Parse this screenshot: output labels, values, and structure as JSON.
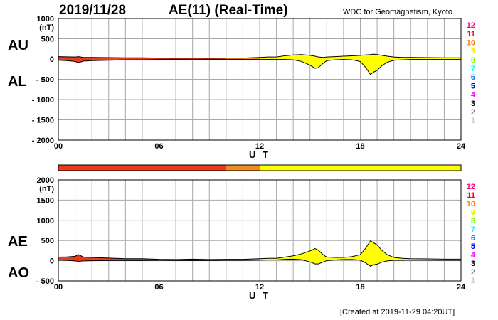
{
  "header": {
    "date": "2019/11/28",
    "title": "AE(11) (Real-Time)",
    "source": "WDC for Geomagnetism, Kyoto"
  },
  "footer": {
    "created": "[Created at 2019-11-29 04:20UT]"
  },
  "colors": {
    "fill_yellow": "#ffff00",
    "fill_red": "#ee3a1c",
    "fill_orange": "#f08c1e",
    "grid": "#a8a8a8"
  },
  "station_count_legend": {
    "labels": [
      "12",
      "11",
      "10",
      "9",
      "8",
      "7",
      "6",
      "5",
      "4",
      "3",
      "2",
      "1"
    ],
    "colors": [
      "#ff0080",
      "#ff0000",
      "#ff8000",
      "#e8e800",
      "#80ff00",
      "#00ffff",
      "#0080ff",
      "#0000ff",
      "#ff00ff",
      "#000000",
      "#808080",
      "#c8c8c8"
    ]
  },
  "station_bar": {
    "segments": [
      {
        "from": 0,
        "to": 10,
        "color": "#ee3a1c",
        "count": "11"
      },
      {
        "from": 10,
        "to": 12,
        "color": "#f08c1e",
        "count": "10"
      },
      {
        "from": 12,
        "to": 24,
        "color": "#ffff00",
        "count": "9"
      }
    ]
  },
  "chart_data": [
    {
      "type": "area",
      "panel": "AU/AL",
      "labels": {
        "upper": "AU",
        "lower": "AL"
      },
      "unit": "(nT)",
      "xlabel": "U T",
      "ylim": [
        -2000,
        1000
      ],
      "yticks": [
        1000,
        500,
        0,
        -500,
        -1000,
        -1500,
        -2000
      ],
      "ytick_labels": [
        "1000",
        "500",
        "0",
        "- 500",
        "- 1000",
        "- 1500",
        "- 2000"
      ],
      "xlim": [
        0,
        24
      ],
      "xticks": [
        0,
        6,
        12,
        18,
        24
      ],
      "xtick_labels": [
        "00",
        "06",
        "12",
        "18",
        "24"
      ],
      "grid": true,
      "x": [
        0,
        0.5,
        1,
        1.2,
        1.5,
        2,
        3,
        4,
        5,
        6,
        7,
        8,
        9,
        10,
        11,
        12,
        12.5,
        13,
        13.5,
        14,
        14.5,
        15,
        15.3,
        15.5,
        15.8,
        16,
        16.5,
        17,
        17.5,
        18,
        18.3,
        18.6,
        18.8,
        19,
        19.3,
        19.6,
        20,
        20.5,
        21,
        22,
        23,
        24
      ],
      "series": [
        {
          "name": "AU",
          "values": [
            60,
            55,
            50,
            60,
            40,
            40,
            35,
            30,
            30,
            25,
            20,
            25,
            20,
            25,
            25,
            40,
            50,
            50,
            80,
            100,
            110,
            90,
            70,
            50,
            40,
            50,
            60,
            70,
            80,
            90,
            100,
            110,
            120,
            110,
            90,
            70,
            50,
            40,
            40,
            35,
            30,
            30
          ]
        },
        {
          "name": "AL",
          "values": [
            -30,
            -40,
            -60,
            -90,
            -50,
            -40,
            -30,
            -20,
            -20,
            -10,
            -10,
            -15,
            -10,
            -10,
            -10,
            -10,
            -10,
            -10,
            -10,
            -20,
            -60,
            -150,
            -230,
            -210,
            -100,
            -40,
            -20,
            -10,
            -20,
            -60,
            -200,
            -380,
            -320,
            -280,
            -160,
            -80,
            -30,
            -20,
            -10,
            -10,
            -10,
            -10
          ]
        }
      ]
    },
    {
      "type": "area",
      "panel": "AE/AO",
      "labels": {
        "upper": "AE",
        "lower": "AO"
      },
      "unit": "(nT)",
      "xlabel": "U T",
      "ylim": [
        -500,
        2000
      ],
      "yticks": [
        2000,
        1500,
        1000,
        500,
        0,
        -500
      ],
      "ytick_labels": [
        "2000",
        "1500",
        "1000",
        "500",
        "0",
        "- 500"
      ],
      "xlim": [
        0,
        24
      ],
      "xticks": [
        0,
        6,
        12,
        18,
        24
      ],
      "xtick_labels": [
        "00",
        "06",
        "12",
        "18",
        "24"
      ],
      "grid": true,
      "x": [
        0,
        0.5,
        1,
        1.2,
        1.5,
        2,
        3,
        4,
        5,
        6,
        7,
        8,
        9,
        10,
        11,
        12,
        12.5,
        13,
        13.5,
        14,
        14.5,
        15,
        15.3,
        15.5,
        15.8,
        16,
        16.5,
        17,
        17.5,
        18,
        18.3,
        18.6,
        18.8,
        19,
        19.3,
        19.6,
        20,
        20.5,
        21,
        22,
        23,
        24
      ],
      "series": [
        {
          "name": "AE",
          "values": [
            90,
            95,
            110,
            150,
            90,
            80,
            65,
            50,
            50,
            35,
            30,
            40,
            30,
            35,
            35,
            50,
            60,
            60,
            90,
            120,
            170,
            240,
            300,
            260,
            140,
            90,
            80,
            80,
            100,
            150,
            300,
            490,
            440,
            390,
            250,
            150,
            80,
            60,
            50,
            45,
            40,
            40
          ]
        },
        {
          "name": "AO",
          "values": [
            15,
            8,
            -5,
            -15,
            -5,
            0,
            3,
            5,
            5,
            8,
            5,
            5,
            5,
            8,
            8,
            15,
            20,
            20,
            35,
            40,
            25,
            -30,
            -80,
            -80,
            -30,
            5,
            20,
            30,
            30,
            15,
            -50,
            -135,
            -100,
            -85,
            -35,
            -5,
            10,
            10,
            15,
            13,
            10,
            10
          ]
        }
      ]
    }
  ]
}
